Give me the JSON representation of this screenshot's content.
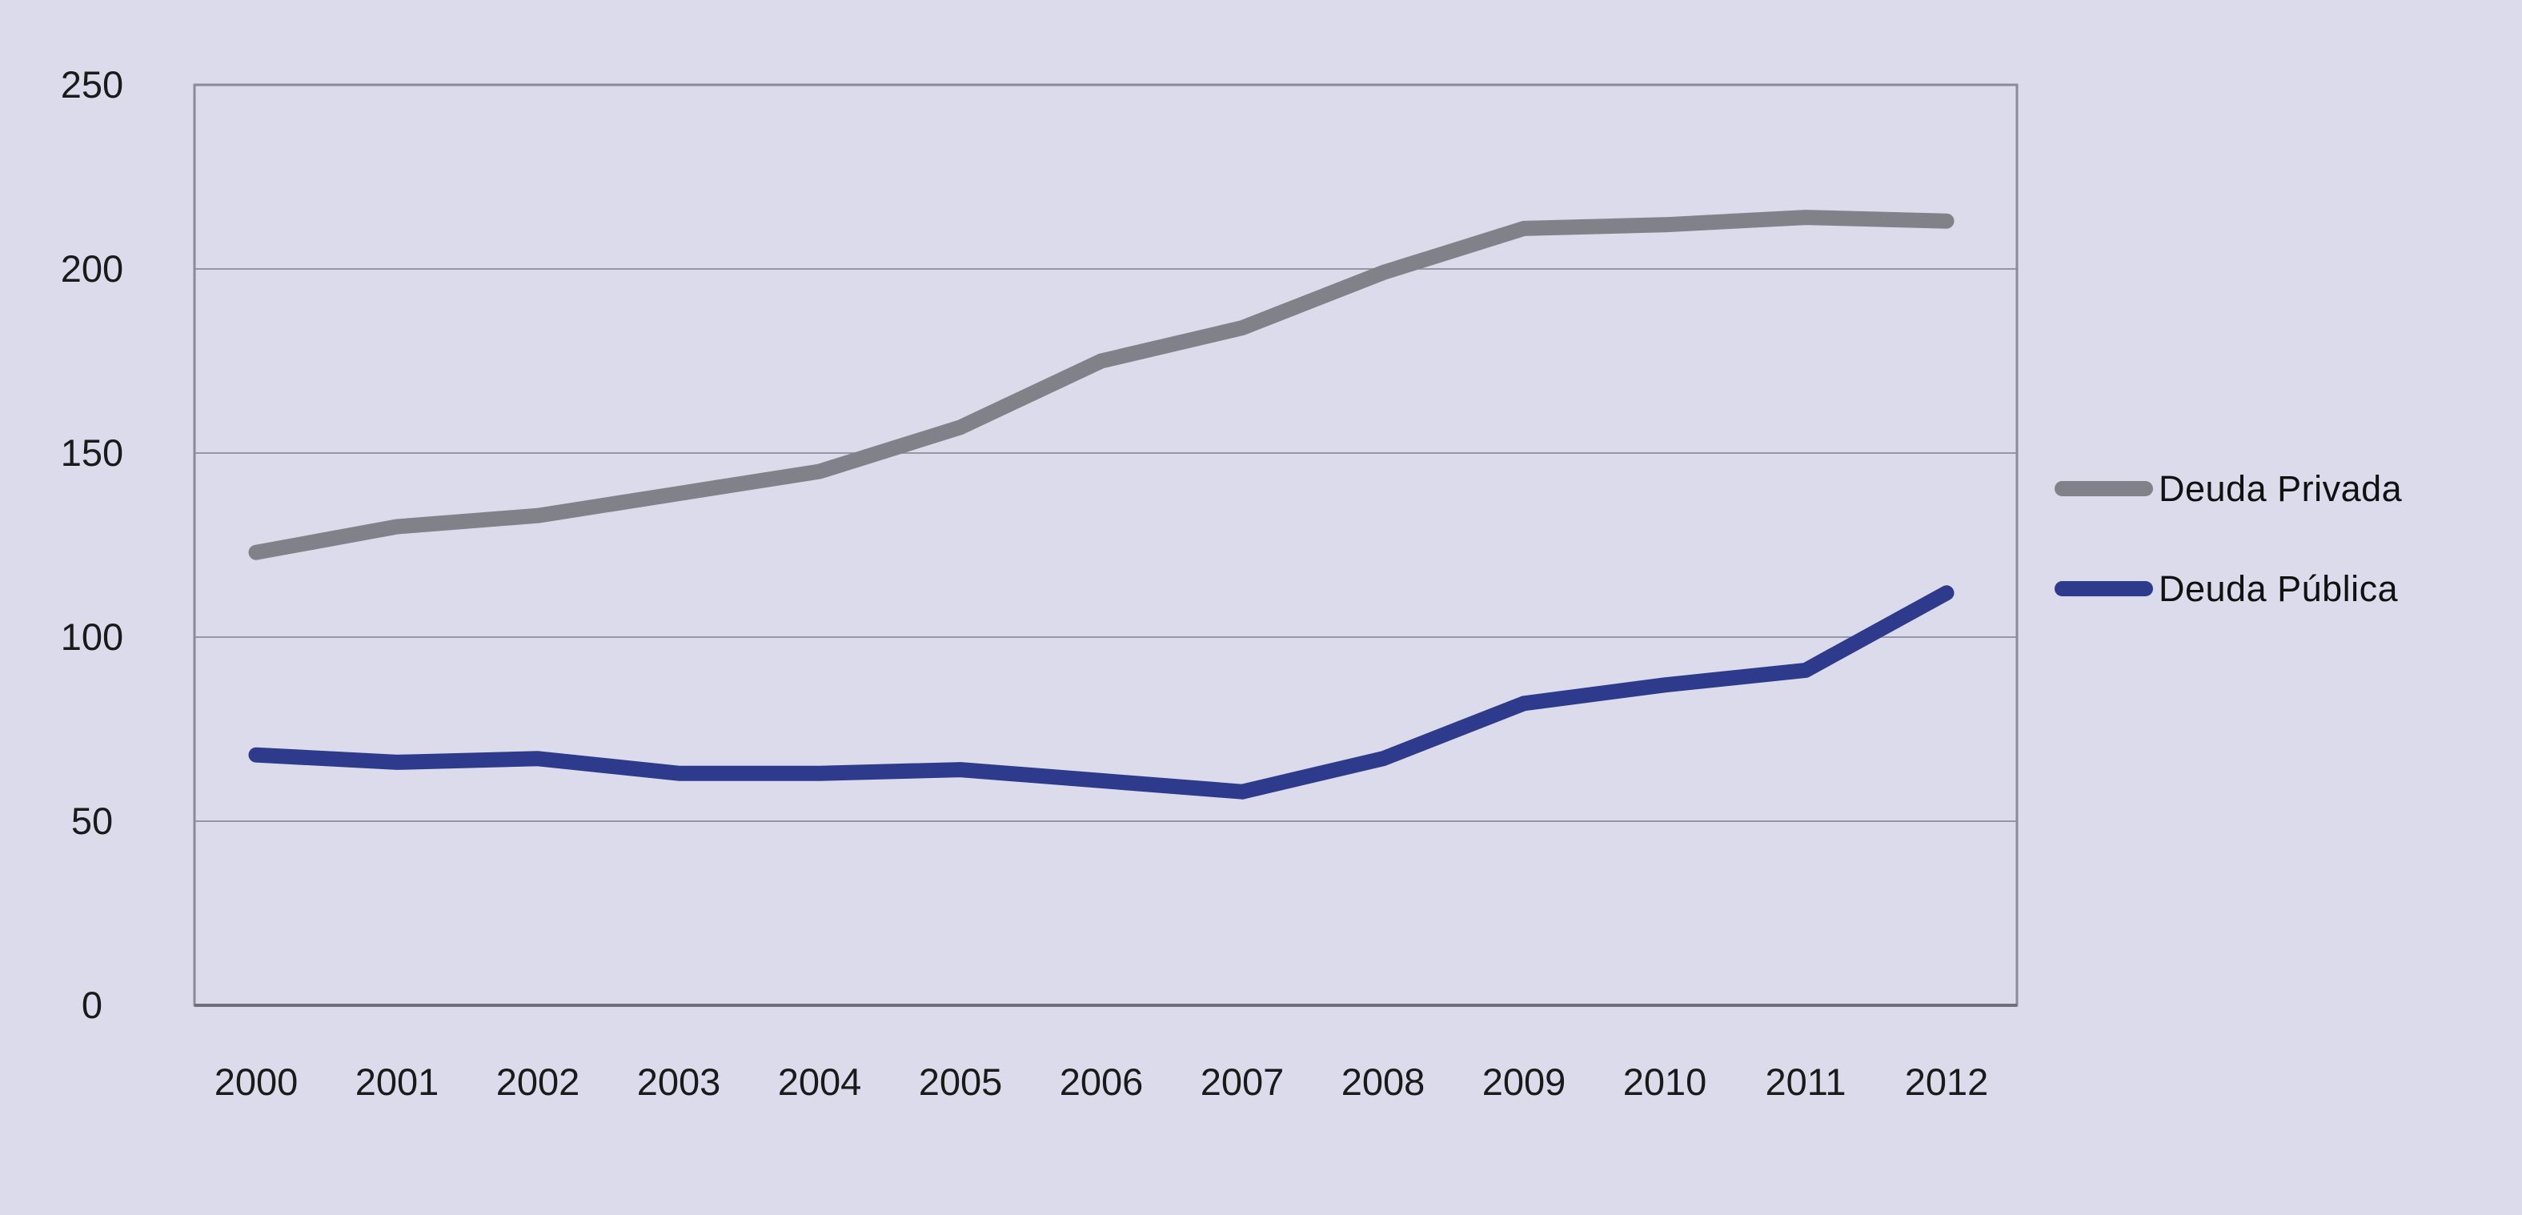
{
  "chart_data": {
    "type": "line",
    "title": "",
    "xlabel": "",
    "ylabel": "",
    "categories": [
      "2000",
      "2001",
      "2002",
      "2003",
      "2004",
      "2005",
      "2006",
      "2007",
      "2008",
      "2009",
      "2010",
      "2011",
      "2012"
    ],
    "series": [
      {
        "name": "Deuda Privada",
        "color": "#81818a",
        "values": [
          123,
          130,
          133,
          139,
          145,
          157,
          175,
          184,
          199,
          211,
          212,
          214,
          213
        ]
      },
      {
        "name": "Deuda Pública",
        "color": "#2e3a8c",
        "values": [
          68,
          66,
          67,
          63,
          63,
          64,
          61,
          58,
          67,
          82,
          87,
          91,
          112
        ]
      }
    ],
    "ylim": [
      0,
      250
    ],
    "yticks": [
      "0",
      "50",
      "100",
      "150",
      "200",
      "250"
    ],
    "grid": true,
    "legend_position": "right",
    "background_color": "#dbdbeb",
    "gridline_color": "#9596a6",
    "frame_color": "#8a8a99",
    "axis_line_color": "#6f6f7a",
    "text_color": "#1a1a1a"
  }
}
